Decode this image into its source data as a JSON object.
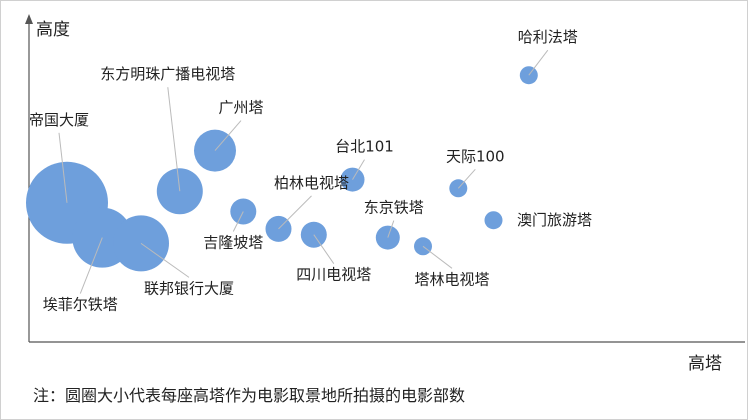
{
  "chart_data": {
    "type": "bubble",
    "xlabel": "高塔",
    "ylabel": "高度",
    "note": "注：圆圈大小代表每座高塔作为电影取景地所拍摄的电影部数",
    "grid": false,
    "bubble_color": "#6E9FDC",
    "points": [
      {
        "label": "帝国大厦",
        "x": 0.7,
        "y": 0.48,
        "size": 41
      },
      {
        "label": "埃菲尔铁塔",
        "x": 1.2,
        "y": 0.36,
        "size": 30
      },
      {
        "label": "联邦银行大厦",
        "x": 1.75,
        "y": 0.34,
        "size": 28
      },
      {
        "label": "东方明珠广播电视塔",
        "x": 2.3,
        "y": 0.52,
        "size": 23
      },
      {
        "label": "广州塔",
        "x": 2.8,
        "y": 0.66,
        "size": 21
      },
      {
        "label": "吉隆坡塔",
        "x": 3.2,
        "y": 0.45,
        "size": 13
      },
      {
        "label": "柏林电视塔",
        "x": 3.7,
        "y": 0.39,
        "size": 13
      },
      {
        "label": "四川电视塔",
        "x": 4.2,
        "y": 0.37,
        "size": 13
      },
      {
        "label": "台北101",
        "x": 4.75,
        "y": 0.56,
        "size": 12
      },
      {
        "label": "东京铁塔",
        "x": 5.25,
        "y": 0.36,
        "size": 12
      },
      {
        "label": "塔林电视塔",
        "x": 5.75,
        "y": 0.33,
        "size": 9
      },
      {
        "label": "天际100",
        "x": 6.25,
        "y": 0.53,
        "size": 9
      },
      {
        "label": "澳门旅游塔",
        "x": 6.75,
        "y": 0.42,
        "size": 9
      },
      {
        "label": "哈利法塔",
        "x": 7.25,
        "y": 0.92,
        "size": 9
      }
    ]
  }
}
